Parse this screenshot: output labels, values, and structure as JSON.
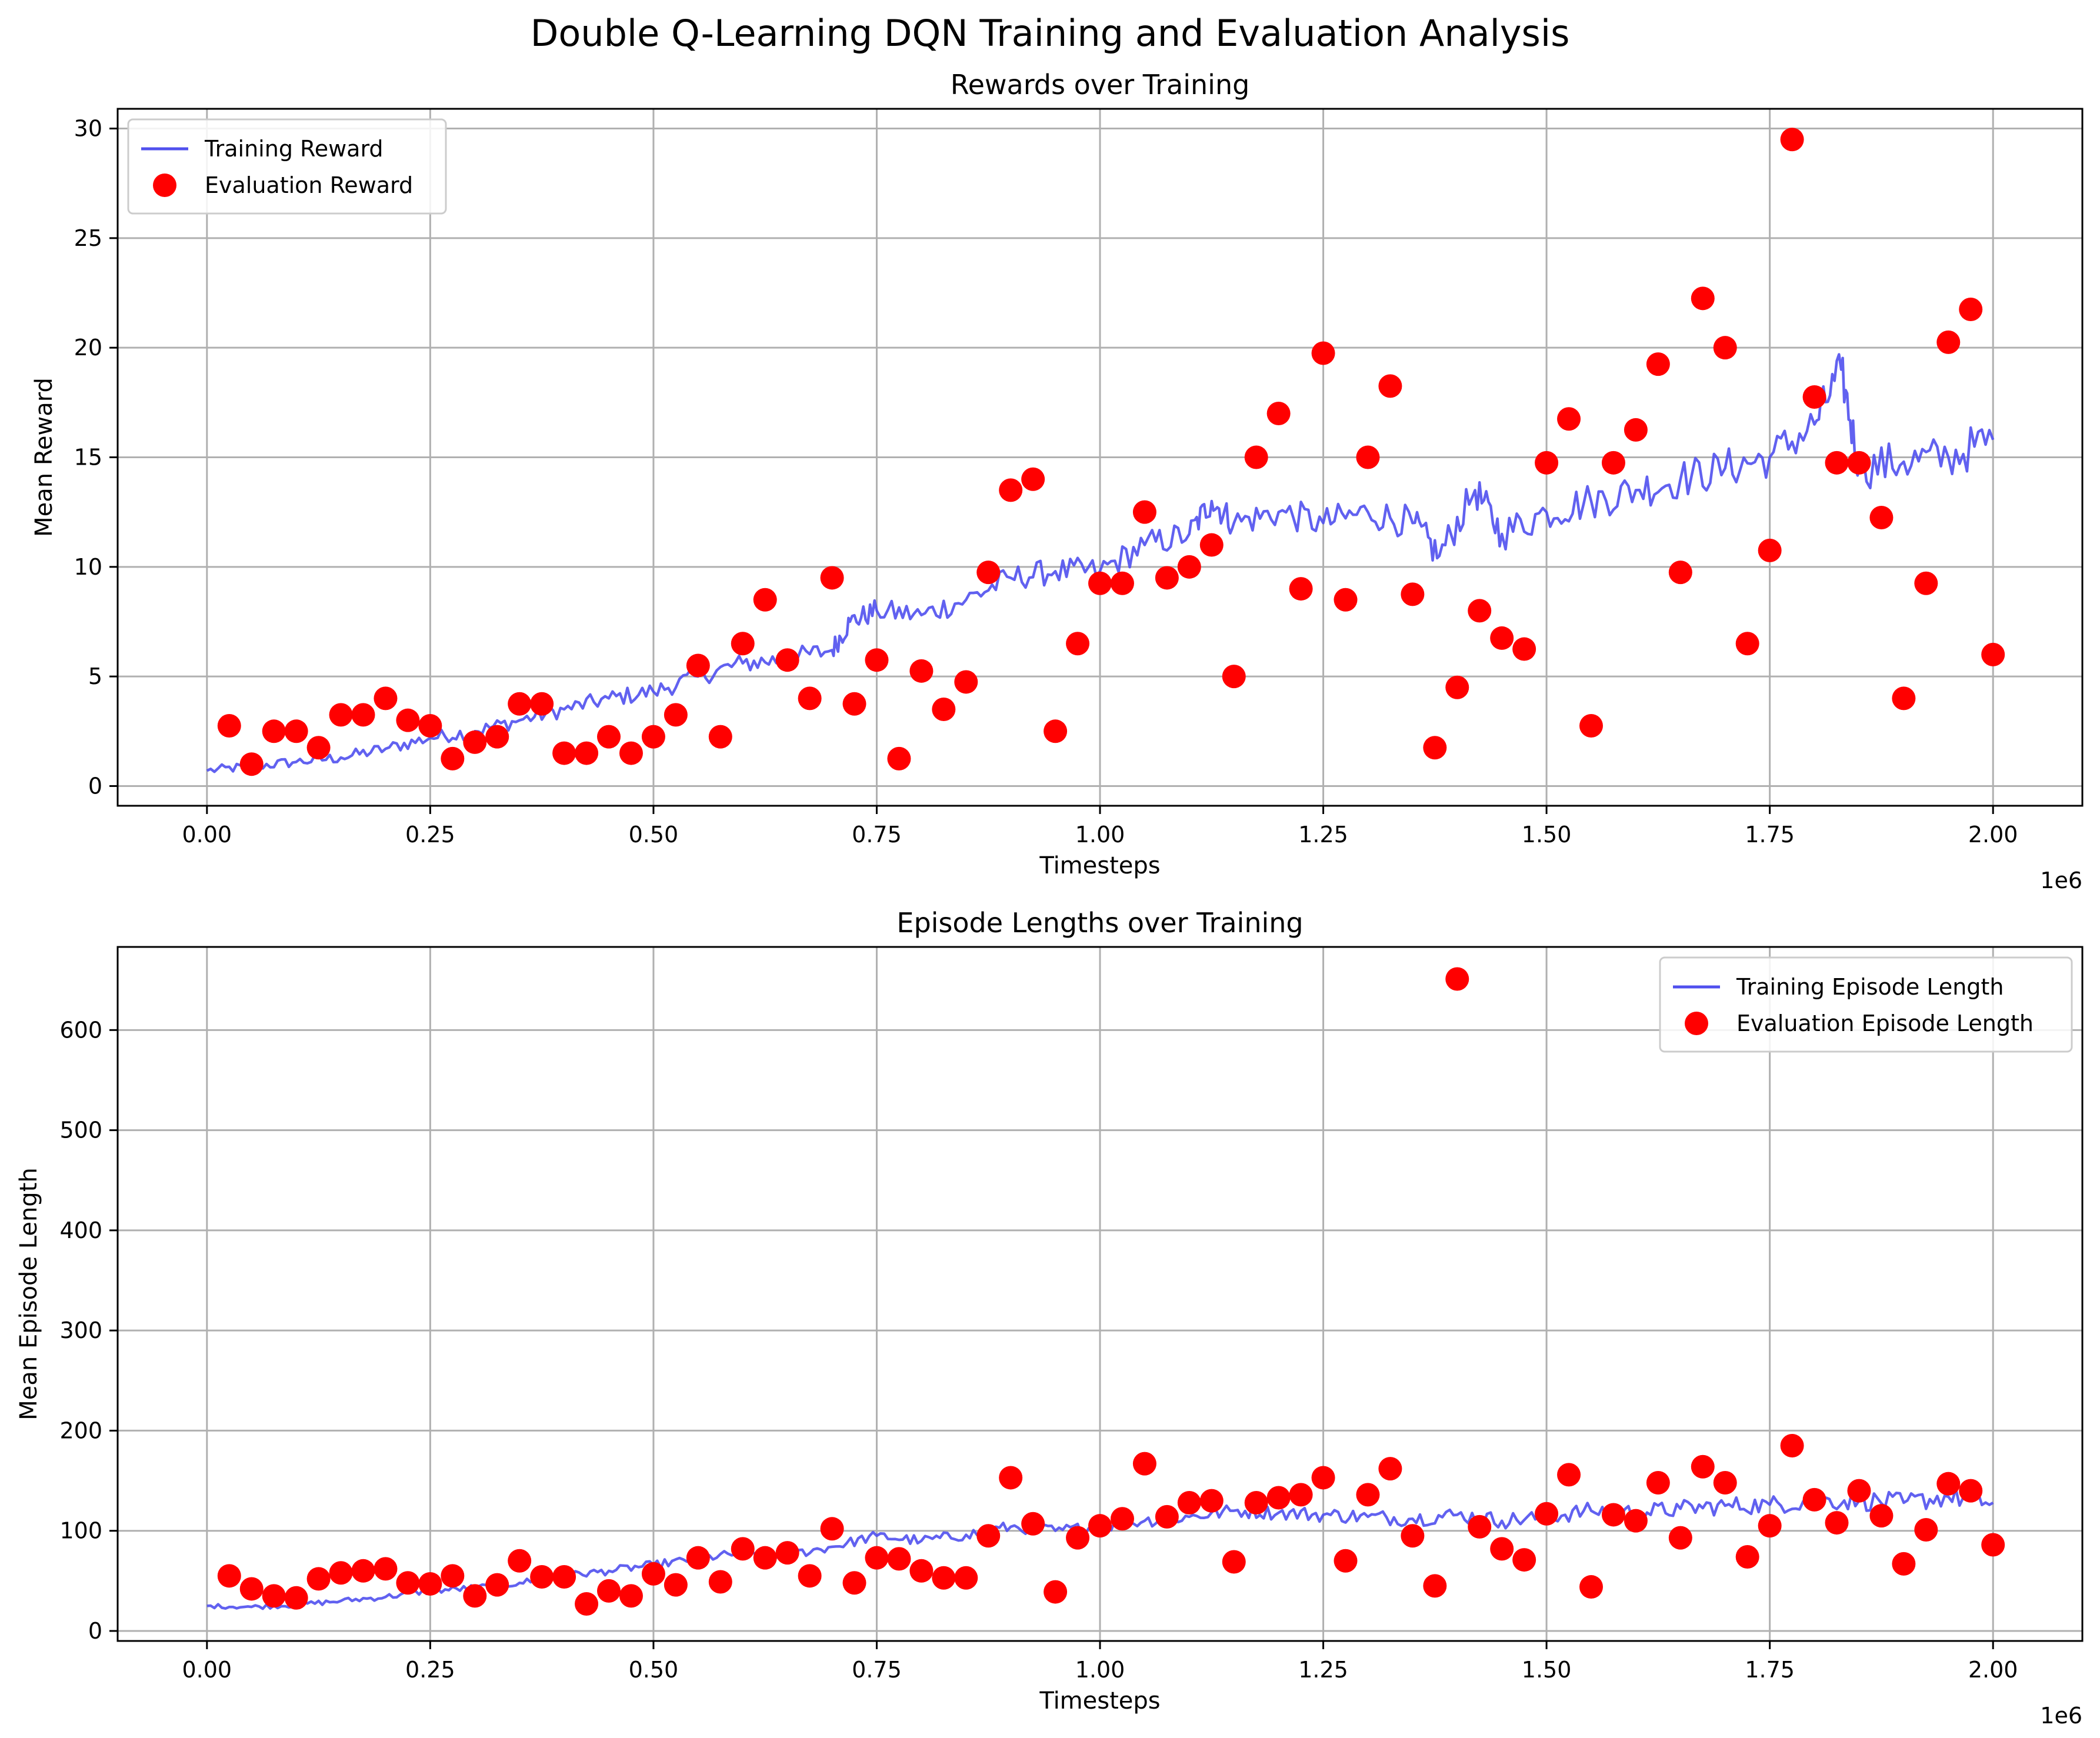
{
  "figure_title": "Double Q-Learning DQN Training and Evaluation Analysis",
  "colors": {
    "training": "#5050ee",
    "evaluation": "#ff0000",
    "grid": "#b0b0b0"
  },
  "chart_data": [
    {
      "type": "line",
      "title": "Rewards over Training",
      "xlabel": "Timesteps",
      "ylabel": "Mean Reward",
      "x_offset_label": "1e6",
      "xlim": [
        -0.1,
        2.1
      ],
      "ylim": [
        -0.9,
        30.9
      ],
      "xticks": [
        0.0,
        0.25,
        0.5,
        0.75,
        1.0,
        1.25,
        1.5,
        1.75,
        2.0
      ],
      "xtick_labels": [
        "0.00",
        "0.25",
        "0.50",
        "0.75",
        "1.00",
        "1.25",
        "1.50",
        "1.75",
        "2.00"
      ],
      "yticks": [
        0,
        5,
        10,
        15,
        20,
        25,
        30
      ],
      "ytick_labels": [
        "0",
        "5",
        "10",
        "15",
        "20",
        "25",
        "30"
      ],
      "grid": true,
      "legend_position": "top-left",
      "series": [
        {
          "name": "Training Reward",
          "kind": "line",
          "x": [
            0.0,
            0.05,
            0.1,
            0.15,
            0.2,
            0.25,
            0.3,
            0.35,
            0.4,
            0.45,
            0.5,
            0.55,
            0.6,
            0.65,
            0.7,
            0.72,
            0.75,
            0.8,
            0.85,
            0.9,
            0.95,
            1.0,
            1.05,
            1.1,
            1.125,
            1.15,
            1.2,
            1.25,
            1.3,
            1.35,
            1.38,
            1.42,
            1.45,
            1.5,
            1.55,
            1.6,
            1.65,
            1.7,
            1.75,
            1.8,
            1.83,
            1.85,
            1.9,
            1.95,
            2.0
          ],
          "y": [
            0.7,
            0.9,
            1.1,
            1.3,
            1.7,
            2.2,
            2.5,
            3.0,
            3.5,
            4.0,
            4.3,
            5.0,
            5.6,
            5.8,
            6.2,
            7.5,
            8.0,
            7.8,
            8.5,
            9.5,
            9.8,
            9.8,
            11.0,
            11.5,
            13.0,
            12.0,
            12.5,
            12.0,
            12.5,
            12.0,
            10.5,
            13.5,
            11.5,
            12.5,
            13.0,
            13.5,
            14.0,
            14.5,
            15.0,
            16.5,
            19.0,
            14.5,
            14.8,
            15.0,
            15.8
          ]
        },
        {
          "name": "Evaluation Reward",
          "kind": "scatter",
          "x": [
            0.025,
            0.05,
            0.075,
            0.1,
            0.125,
            0.15,
            0.175,
            0.2,
            0.225,
            0.25,
            0.275,
            0.3,
            0.325,
            0.35,
            0.375,
            0.4,
            0.425,
            0.45,
            0.475,
            0.5,
            0.525,
            0.55,
            0.575,
            0.6,
            0.625,
            0.65,
            0.675,
            0.7,
            0.725,
            0.75,
            0.775,
            0.8,
            0.825,
            0.85,
            0.875,
            0.9,
            0.925,
            0.95,
            0.975,
            1.0,
            1.025,
            1.05,
            1.075,
            1.1,
            1.125,
            1.15,
            1.175,
            1.2,
            1.225,
            1.25,
            1.275,
            1.3,
            1.325,
            1.35,
            1.375,
            1.4,
            1.425,
            1.45,
            1.475,
            1.5,
            1.525,
            1.55,
            1.575,
            1.6,
            1.625,
            1.65,
            1.675,
            1.7,
            1.725,
            1.75,
            1.775,
            1.8,
            1.825,
            1.85,
            1.875,
            1.9,
            1.925,
            1.95,
            1.975,
            2.0
          ],
          "y": [
            2.75,
            1.0,
            2.5,
            2.5,
            1.75,
            3.25,
            3.25,
            4.0,
            3.0,
            2.75,
            1.25,
            2.0,
            2.25,
            3.75,
            3.75,
            1.5,
            1.5,
            2.25,
            1.5,
            2.25,
            3.25,
            5.5,
            2.25,
            6.5,
            8.5,
            5.75,
            4.0,
            9.5,
            3.75,
            5.75,
            1.25,
            5.25,
            3.5,
            4.75,
            9.75,
            13.5,
            14.0,
            2.5,
            6.5,
            9.25,
            9.25,
            12.5,
            9.5,
            10.0,
            11.0,
            5.0,
            15.0,
            17.0,
            9.0,
            19.75,
            8.5,
            15.0,
            18.25,
            8.75,
            1.75,
            4.5,
            8.0,
            6.75,
            6.25,
            14.75,
            16.75,
            2.75,
            14.75,
            16.25,
            19.25,
            9.75,
            22.25,
            20.0,
            6.5,
            10.75,
            29.5,
            17.75,
            14.75,
            14.75,
            12.25,
            4.0,
            9.25,
            20.25,
            21.75,
            6.0
          ]
        }
      ]
    },
    {
      "type": "line",
      "title": "Episode Lengths over Training",
      "xlabel": "Timesteps",
      "ylabel": "Mean Episode Length",
      "x_offset_label": "1e6",
      "xlim": [
        -0.1,
        2.1
      ],
      "ylim": [
        -10,
        683
      ],
      "xticks": [
        0.0,
        0.25,
        0.5,
        0.75,
        1.0,
        1.25,
        1.5,
        1.75,
        2.0
      ],
      "xtick_labels": [
        "0.00",
        "0.25",
        "0.50",
        "0.75",
        "1.00",
        "1.25",
        "1.50",
        "1.75",
        "2.00"
      ],
      "yticks": [
        0,
        100,
        200,
        300,
        400,
        500,
        600
      ],
      "ytick_labels": [
        "0",
        "100",
        "200",
        "300",
        "400",
        "500",
        "600"
      ],
      "grid": true,
      "legend_position": "top-right",
      "series": [
        {
          "name": "Training Episode Length",
          "kind": "line",
          "x": [
            0.0,
            0.05,
            0.1,
            0.15,
            0.2,
            0.25,
            0.3,
            0.35,
            0.4,
            0.45,
            0.5,
            0.55,
            0.6,
            0.65,
            0.7,
            0.75,
            0.8,
            0.85,
            0.9,
            0.95,
            1.0,
            1.05,
            1.1,
            1.15,
            1.2,
            1.25,
            1.3,
            1.35,
            1.4,
            1.45,
            1.5,
            1.55,
            1.6,
            1.65,
            1.7,
            1.75,
            1.8,
            1.85,
            1.9,
            1.95,
            2.0
          ],
          "y": [
            25,
            24,
            26,
            30,
            34,
            40,
            43,
            48,
            55,
            60,
            66,
            72,
            78,
            76,
            84,
            95,
            90,
            96,
            104,
            100,
            104,
            110,
            114,
            120,
            118,
            116,
            114,
            112,
            116,
            110,
            114,
            120,
            118,
            122,
            125,
            126,
            130,
            130,
            128,
            134,
            128
          ]
        },
        {
          "name": "Evaluation Episode Length",
          "kind": "scatter",
          "x": [
            0.025,
            0.05,
            0.075,
            0.1,
            0.125,
            0.15,
            0.175,
            0.2,
            0.225,
            0.25,
            0.275,
            0.3,
            0.325,
            0.35,
            0.375,
            0.4,
            0.425,
            0.45,
            0.475,
            0.5,
            0.525,
            0.55,
            0.575,
            0.6,
            0.625,
            0.65,
            0.675,
            0.7,
            0.725,
            0.75,
            0.775,
            0.8,
            0.825,
            0.85,
            0.875,
            0.9,
            0.925,
            0.95,
            0.975,
            1.0,
            1.025,
            1.05,
            1.075,
            1.1,
            1.125,
            1.15,
            1.175,
            1.2,
            1.225,
            1.25,
            1.275,
            1.3,
            1.325,
            1.35,
            1.375,
            1.4,
            1.425,
            1.45,
            1.475,
            1.5,
            1.525,
            1.55,
            1.575,
            1.6,
            1.625,
            1.65,
            1.675,
            1.7,
            1.725,
            1.75,
            1.775,
            1.8,
            1.825,
            1.85,
            1.875,
            1.9,
            1.925,
            1.95,
            1.975,
            2.0
          ],
          "y": [
            55,
            42,
            35,
            33,
            52,
            58,
            60,
            62,
            48,
            47,
            55,
            35,
            46,
            70,
            54,
            54,
            27,
            40,
            35,
            57,
            46,
            73,
            49,
            82,
            73,
            78,
            55,
            102,
            48,
            73,
            72,
            60,
            53,
            53,
            95,
            153,
            107,
            39,
            93,
            105,
            112,
            167,
            114,
            128,
            130,
            69,
            128,
            133,
            136,
            153,
            70,
            136,
            162,
            95,
            45,
            651,
            104,
            82,
            71,
            117,
            156,
            44,
            116,
            110,
            148,
            93,
            164,
            148,
            74,
            105,
            185,
            131,
            108,
            140,
            115,
            67,
            101,
            147,
            140,
            86
          ]
        }
      ]
    }
  ]
}
